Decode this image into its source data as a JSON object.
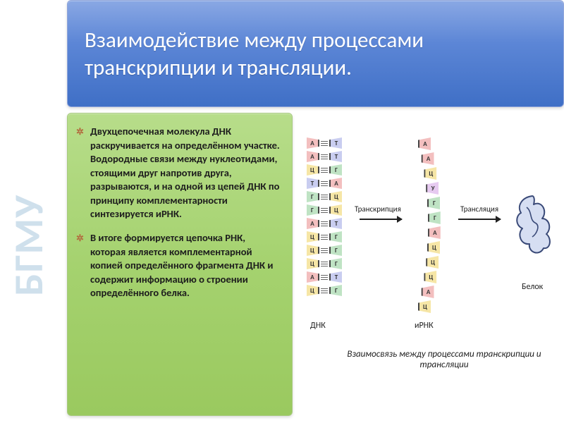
{
  "sidebar": {
    "label": "БГМУ",
    "text_color": "#cfe0ec",
    "fontsize": 58
  },
  "title": {
    "text": "Взаимодействие между процессами транскрипции и трансляции.",
    "bg_gradient": [
      "#8aa8e4",
      "#5c86d6",
      "#3f6fc6"
    ],
    "text_color": "#ffffff",
    "fontsize": 31
  },
  "body": {
    "bg_gradient": [
      "#b7dd8a",
      "#a5d26f",
      "#9ac95f"
    ],
    "text_color": "#1d1d1d",
    "bullet_color": "#b36b3f",
    "fontsize": 14.5,
    "items": [
      "Двухцепочечная молекула ДНК раскручивается на определённом участке. Водородные связи между нуклеотидами, стоящими друг напротив друга, разрываются, и на одной из цепей ДНК по принципу комплементарности синтезируется иРНК.",
      "В итоге формируется цепочка РНК, которая является комплементарной копией определённого фрагмента ДНК и содержит информацию о строении определённого белка."
    ]
  },
  "diagram": {
    "type": "flowchart",
    "background_color": "#ffffff",
    "dna": {
      "label": "ДНК",
      "pairs": [
        {
          "l": "А",
          "lc": "#f3bfbf",
          "r": "Т",
          "rc": "#c9cdf0"
        },
        {
          "l": "А",
          "lc": "#f3bfbf",
          "r": "Т",
          "rc": "#c9cdf0"
        },
        {
          "l": "Ц",
          "lc": "#f6e6a6",
          "r": "Г",
          "rc": "#bfe3c4"
        },
        {
          "l": "Т",
          "lc": "#c9cdf0",
          "r": "А",
          "rc": "#f3bfbf"
        },
        {
          "l": "Г",
          "lc": "#bfe3c4",
          "r": "Ц",
          "rc": "#f6e6a6"
        },
        {
          "l": "Г",
          "lc": "#bfe3c4",
          "r": "Ц",
          "rc": "#f6e6a6"
        },
        {
          "l": "А",
          "lc": "#f3bfbf",
          "r": "Т",
          "rc": "#c9cdf0"
        },
        {
          "l": "Ц",
          "lc": "#f6e6a6",
          "r": "Г",
          "rc": "#bfe3c4"
        },
        {
          "l": "Ц",
          "lc": "#f6e6a6",
          "r": "Г",
          "rc": "#bfe3c4"
        },
        {
          "l": "Ц",
          "lc": "#f6e6a6",
          "r": "Г",
          "rc": "#bfe3c4"
        },
        {
          "l": "А",
          "lc": "#f3bfbf",
          "r": "Т",
          "rc": "#c9cdf0"
        },
        {
          "l": "Ц",
          "lc": "#f6e6a6",
          "r": "Г",
          "rc": "#bfe3c4"
        }
      ]
    },
    "rna": {
      "label": "иРНК",
      "bases": [
        {
          "b": "А",
          "c": "#f3bfbf"
        },
        {
          "b": "А",
          "c": "#f3bfbf"
        },
        {
          "b": "Ц",
          "c": "#f6e6a6"
        },
        {
          "b": "У",
          "c": "#e6caf0"
        },
        {
          "b": "Г",
          "c": "#bfe3c4"
        },
        {
          "b": "Г",
          "c": "#bfe3c4"
        },
        {
          "b": "А",
          "c": "#f3bfbf"
        },
        {
          "b": "Ц",
          "c": "#f6e6a6"
        },
        {
          "b": "Ц",
          "c": "#f6e6a6"
        },
        {
          "b": "Ц",
          "c": "#f6e6a6"
        },
        {
          "b": "А",
          "c": "#f3bfbf"
        },
        {
          "b": "Ц",
          "c": "#f6e6a6"
        }
      ]
    },
    "arrows": [
      {
        "label": "Транскрипция"
      },
      {
        "label": "Трансляция"
      }
    ],
    "protein": {
      "label": "Белок",
      "stroke": "#3a4a78",
      "fill": "#d6def2"
    },
    "caption": "Взаимосвязь между процессами транскрипции и трансляции",
    "label_fontsize": 12,
    "arrow_label_fontsize": 11,
    "caption_fontsize": 13
  }
}
